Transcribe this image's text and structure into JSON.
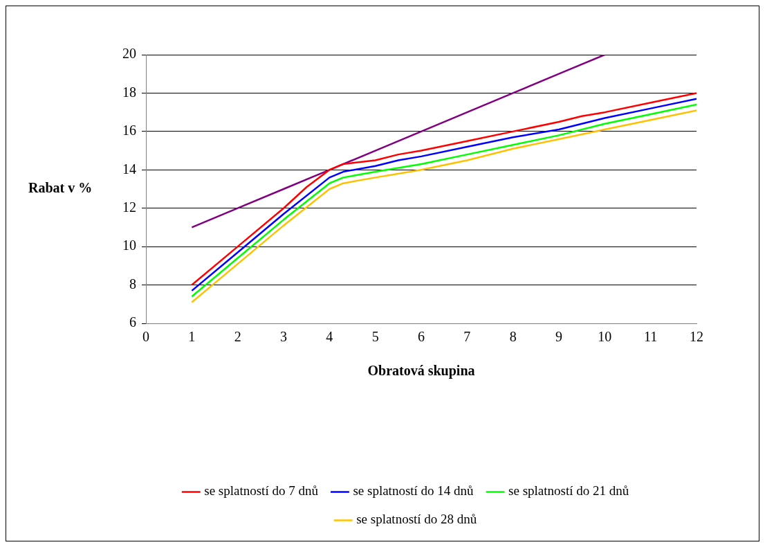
{
  "chart_data": {
    "type": "line",
    "xlabel": "Obratová skupina",
    "ylabel": "Rabat v %",
    "xlim": [
      0,
      12
    ],
    "xticks": [
      0,
      1,
      2,
      3,
      4,
      5,
      6,
      7,
      8,
      9,
      10,
      11,
      12
    ],
    "ylim": [
      6,
      20
    ],
    "yticks": [
      6,
      8,
      10,
      12,
      14,
      16,
      18,
      20
    ],
    "grid": "y",
    "legend": "bottom",
    "marker": "none",
    "line_style": "solid",
    "series": [
      {
        "name": "se splatností do 7 dnů",
        "color": "#ff0000",
        "x": [
          1,
          2,
          3,
          3.5,
          4,
          4.3,
          5,
          5.5,
          6,
          7,
          8,
          9,
          9.5,
          10,
          11,
          12
        ],
        "values": [
          8,
          10,
          12,
          13.1,
          14,
          14.3,
          14.5,
          14.8,
          15,
          15.5,
          16,
          16.5,
          16.8,
          17,
          17.5,
          18
        ]
      },
      {
        "name": "se splatností do 14 dnů",
        "color": "#0000ff",
        "x": [
          1,
          2,
          3,
          4,
          4.3,
          5,
          5.5,
          6,
          7,
          8,
          9,
          10,
          11,
          12
        ],
        "values": [
          7.7,
          9.7,
          11.7,
          13.6,
          13.9,
          14.2,
          14.5,
          14.7,
          15.2,
          15.7,
          16.1,
          16.7,
          17.2,
          17.7
        ]
      },
      {
        "name": "se splatností do 21 dnů",
        "color": "#00ff00",
        "x": [
          1,
          2,
          3,
          4,
          4.3,
          5,
          6,
          7,
          8,
          9,
          10,
          11,
          12
        ],
        "values": [
          7.4,
          9.4,
          11.4,
          13.3,
          13.6,
          13.9,
          14.3,
          14.8,
          15.3,
          15.8,
          16.4,
          16.9,
          17.4
        ]
      },
      {
        "name": "se splatností do 28 dnů",
        "color": "#ffc000",
        "x": [
          1,
          2,
          3,
          4,
          4.3,
          5,
          6,
          7,
          8,
          9,
          10,
          11,
          12
        ],
        "values": [
          7.1,
          9.1,
          11.1,
          13,
          13.3,
          13.6,
          14,
          14.5,
          15.1,
          15.6,
          16.1,
          16.6,
          17.1
        ]
      },
      {
        "color": "#800080",
        "x": [
          1,
          2,
          3,
          4,
          5,
          6,
          7,
          8,
          9,
          10
        ],
        "values": [
          11,
          12,
          13,
          14,
          15,
          16,
          17,
          18,
          19,
          20
        ]
      }
    ]
  }
}
